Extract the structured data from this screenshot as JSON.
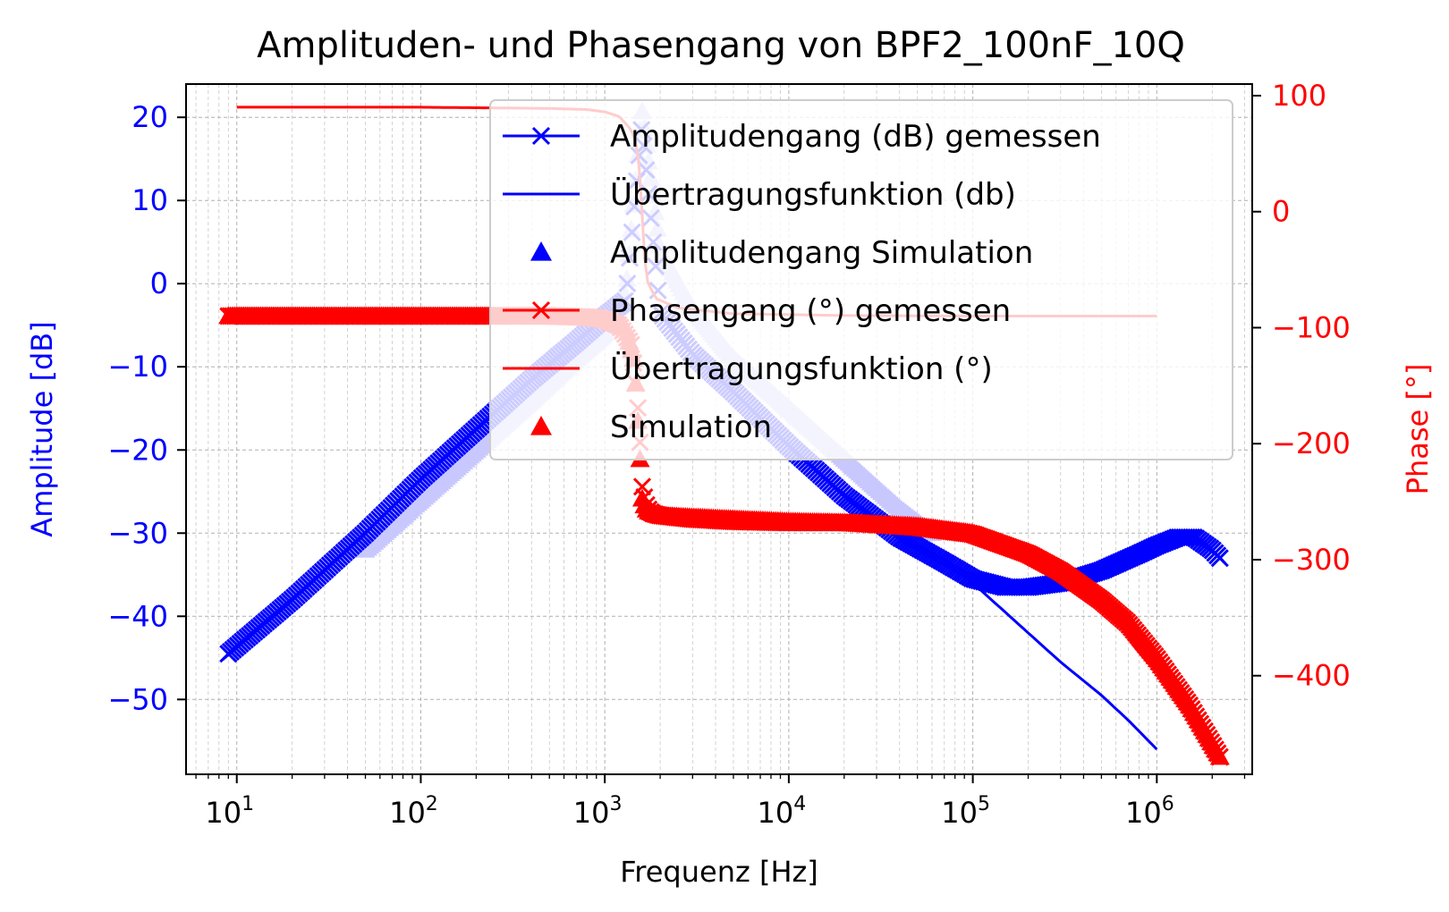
{
  "chart_data": {
    "type": "line",
    "title": "Amplituden- und Phasengang von BPF2_100nF_10Q",
    "xlabel": "Frequenz [Hz]",
    "ylabel_left": "Amplitude [dB]",
    "ylabel_right": "Phase [°]",
    "xscale": "log",
    "xlim": [
      5.3,
      3300000
    ],
    "ylim_left": [
      -59,
      24
    ],
    "ylim_right": [
      -485,
      110
    ],
    "x_ticks": [
      {
        "value": 10,
        "base": "10",
        "exp": "1"
      },
      {
        "value": 100,
        "base": "10",
        "exp": "2"
      },
      {
        "value": 1000,
        "base": "10",
        "exp": "3"
      },
      {
        "value": 10000,
        "base": "10",
        "exp": "4"
      },
      {
        "value": 100000,
        "base": "10",
        "exp": "5"
      },
      {
        "value": 1000000,
        "base": "10",
        "exp": "6"
      }
    ],
    "y_left_ticks": [
      {
        "value": 20,
        "label": "20"
      },
      {
        "value": 10,
        "label": "10"
      },
      {
        "value": 0,
        "label": "0"
      },
      {
        "value": -10,
        "label": "−10"
      },
      {
        "value": -20,
        "label": "−20"
      },
      {
        "value": -30,
        "label": "−30"
      },
      {
        "value": -40,
        "label": "−40"
      },
      {
        "value": -50,
        "label": "−50"
      }
    ],
    "y_right_ticks": [
      {
        "value": 100,
        "label": "100"
      },
      {
        "value": 0,
        "label": "0"
      },
      {
        "value": -100,
        "label": "−100"
      },
      {
        "value": -200,
        "label": "−200"
      },
      {
        "value": -300,
        "label": "−300"
      },
      {
        "value": -400,
        "label": "−400"
      }
    ],
    "grid": true,
    "legend_position": "upper right",
    "colors": {
      "amplitude": "#0000ff",
      "amplitude_sim": "#c8c8ff",
      "phase": "#ff0000",
      "axis_left": "#0000ff",
      "axis_right": "#ff0000"
    },
    "series": [
      {
        "name": "Amplitudengang (dB) gemessen",
        "axis": "left",
        "marker": "x",
        "color": "#0000ff",
        "x": [
          9,
          20,
          50,
          100,
          200,
          400,
          700,
          1000,
          1300,
          1590,
          2000,
          3000,
          5000,
          10000,
          20000,
          40000,
          70000,
          100000,
          150000,
          200000,
          300000,
          500000,
          800000,
          1000000,
          1300000,
          1600000,
          2000000,
          2200000
        ],
        "y": [
          -44.5,
          -38,
          -30,
          -23.5,
          -17.5,
          -11.5,
          -7,
          -4,
          -2,
          19,
          -3.5,
          -8.5,
          -13,
          -19.5,
          -25.5,
          -30.5,
          -33.5,
          -35.5,
          -36.5,
          -36.5,
          -36,
          -34.5,
          -32.5,
          -31.5,
          -30.5,
          -30.5,
          -32,
          -33
        ]
      },
      {
        "name": "Übertragungsfunktion (db)",
        "axis": "left",
        "marker": "none",
        "color": "#0000ff",
        "x": [
          100000,
          150000,
          200000,
          300000,
          500000,
          700000,
          1000000
        ],
        "y": [
          -36,
          -39.5,
          -42,
          -45.5,
          -49.5,
          -52.5,
          -56
        ]
      },
      {
        "name": "Amplitudengang Simulation",
        "axis": "left",
        "marker": "^",
        "color": "#c8c8ff",
        "x": [
          50,
          100,
          200,
          400,
          700,
          1000,
          1300,
          1590,
          2000,
          3000,
          5000,
          10000,
          20000,
          40000,
          60000
        ],
        "y": [
          -32,
          -26,
          -20,
          -14,
          -9,
          -6,
          -1,
          21,
          4,
          -3,
          -9,
          -15,
          -21,
          -27,
          -30
        ]
      },
      {
        "name": "Phasengang (°) gemessen",
        "axis": "right",
        "marker": "x",
        "color": "#ff0000",
        "x": [
          9,
          50,
          100,
          300,
          500,
          800,
          1000,
          1200,
          1400,
          1500,
          1550,
          1600,
          1700,
          1800,
          2000,
          3000,
          5000,
          10000,
          20000,
          50000,
          100000,
          200000,
          300000,
          500000,
          700000,
          1000000,
          1500000,
          2200000
        ],
        "y": [
          -90,
          -90,
          -90,
          -90,
          -90,
          -91,
          -93,
          -98,
          -115,
          -160,
          -195,
          -240,
          -255,
          -260,
          -262,
          -265,
          -267,
          -268,
          -268,
          -272,
          -278,
          -295,
          -310,
          -335,
          -355,
          -385,
          -425,
          -470
        ]
      },
      {
        "name": "Übertragungsfunktion (°)",
        "axis": "right",
        "marker": "none",
        "color": "#ff0000",
        "x": [
          10,
          100,
          500,
          800,
          1000,
          1200,
          1400,
          1500,
          1560,
          1592,
          1620,
          1700,
          1900,
          2500,
          5000,
          20000,
          100000,
          1000000
        ],
        "y": [
          90,
          90,
          89,
          88,
          86,
          82,
          70,
          55,
          30,
          0,
          -30,
          -60,
          -75,
          -83,
          -88,
          -89.5,
          -90,
          -90
        ]
      },
      {
        "name": "Simulation",
        "axis": "right",
        "marker": "^",
        "color": "#ff0000",
        "x": [
          9,
          100,
          500,
          1000,
          1300,
          1450,
          1500,
          1550,
          1600,
          1700,
          2000,
          5000,
          10000,
          20000,
          50000,
          100000,
          200000,
          300000,
          500000,
          700000,
          1000000,
          1500000,
          2200000
        ],
        "y": [
          -90,
          -90,
          -90,
          -92,
          -100,
          -130,
          -170,
          -210,
          -250,
          -258,
          -262,
          -265,
          -267,
          -268,
          -271,
          -277,
          -295,
          -308,
          -333,
          -353,
          -385,
          -425,
          -470
        ]
      }
    ]
  }
}
